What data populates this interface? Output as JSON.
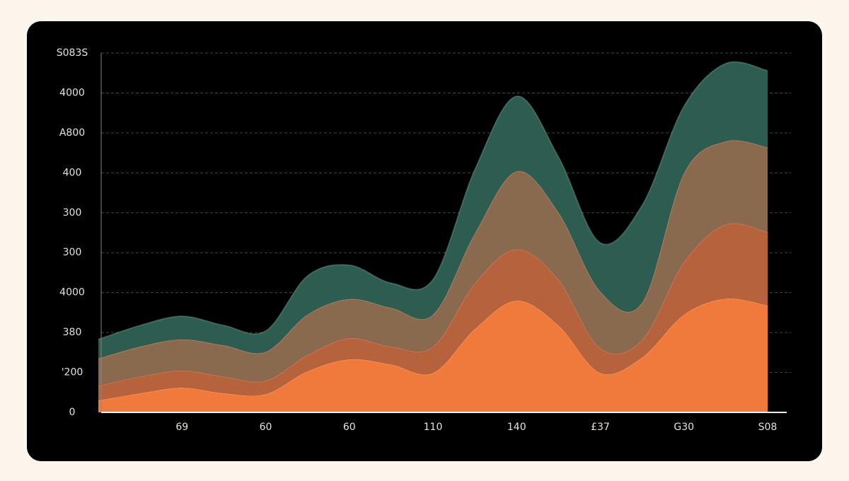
{
  "chart_data": {
    "type": "stacked_area",
    "x": [
      0,
      0.5,
      1,
      1.5,
      2,
      2.5,
      3,
      3.5,
      4,
      4.5,
      5,
      5.5,
      6,
      6.5,
      7,
      7.5,
      8
    ],
    "series": [
      {
        "color": "#f07a3c",
        "values": [
          30,
          48,
          62,
          48,
          46,
          103,
          133,
          120,
          99,
          209,
          280,
          218,
          99,
          138,
          245,
          285,
          268
        ]
      },
      {
        "color": "#b5623d",
        "values": [
          37,
          42,
          43,
          42,
          34,
          41,
          53,
          45,
          66,
          115,
          129,
          115,
          62,
          44,
          132,
          186,
          184
        ]
      },
      {
        "color": "#8a6a4e",
        "values": [
          68,
          75,
          78,
          78,
          72,
          101,
          98,
          97,
          80,
          124,
          195,
          168,
          142,
          93,
          222,
          208,
          212
        ]
      },
      {
        "color": "#2d5d51",
        "values": [
          48,
          53,
          58,
          50,
          52,
          97,
          85,
          62,
          88,
          160,
          188,
          139,
          122,
          244,
          168,
          195,
          192
        ]
      }
    ],
    "xlim": [
      0,
      8
    ],
    "xticks": [
      {
        "value": 1,
        "label": "69"
      },
      {
        "value": 2,
        "label": "60"
      },
      {
        "value": 3,
        "label": "60"
      },
      {
        "value": 4,
        "label": "110"
      },
      {
        "value": 5,
        "label": "140"
      },
      {
        "value": 6,
        "label": "£37"
      },
      {
        "value": 7,
        "label": "G30"
      },
      {
        "value": 8,
        "label": "S08"
      }
    ],
    "ylim": [
      0,
      900
    ],
    "yticks": [
      0,
      {
        "value": 100,
        "label": "'200"
      },
      {
        "value": 200,
        "label": "380"
      },
      {
        "value": 300,
        "label": "4000"
      },
      {
        "value": 400,
        "label": "300"
      },
      {
        "value": 500,
        "label": "300"
      },
      {
        "value": 600,
        "label": "400"
      },
      {
        "value": 700,
        "label": "A800"
      },
      {
        "value": 800,
        "label": "4000"
      },
      {
        "value": 900,
        "label": "S083S"
      }
    ],
    "grid": true
  }
}
